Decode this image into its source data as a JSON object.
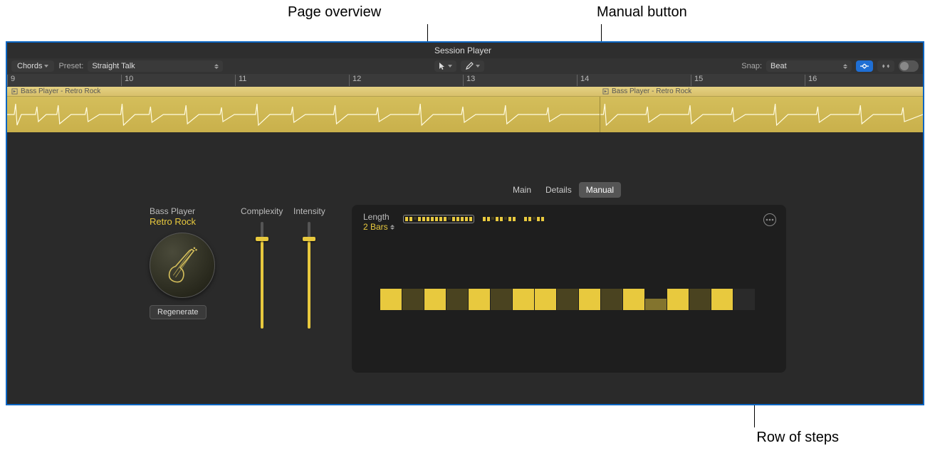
{
  "callouts": {
    "page_overview": "Page overview",
    "manual_button": "Manual button",
    "row_of_steps": "Row of steps"
  },
  "header": {
    "title": "Session Player"
  },
  "toolbar": {
    "chords_label": "Chords",
    "preset_label": "Preset:",
    "preset_value": "Straight Talk",
    "snap_label": "Snap:",
    "snap_value": "Beat"
  },
  "ruler": {
    "ticks": [
      "9",
      "10",
      "11",
      "12",
      "13",
      "14",
      "15",
      "16"
    ]
  },
  "region": {
    "name_a": "Bass Player - Retro Rock",
    "name_b": "Bass Player - Retro Rock",
    "color": "#d4be5b"
  },
  "tabs": {
    "main": "Main",
    "details": "Details",
    "manual": "Manual"
  },
  "player": {
    "type": "Bass Player",
    "style": "Retro Rock",
    "regenerate": "Regenerate",
    "complexity_label": "Complexity",
    "intensity_label": "Intensity",
    "complexity_value": 0.82,
    "intensity_value": 0.82
  },
  "manual": {
    "length_label": "Length",
    "length_value": "2 Bars",
    "page_overview_groups": [
      [
        1,
        1,
        0,
        1,
        1,
        1,
        1,
        1,
        1,
        1,
        0,
        1,
        1,
        1,
        1,
        1
      ],
      [
        1,
        1,
        0,
        1,
        1,
        0,
        1,
        1
      ],
      [
        1,
        1,
        0,
        1,
        1
      ]
    ],
    "steps": [
      "on",
      "dim",
      "on",
      "dim",
      "on",
      "dim",
      "on",
      "on",
      "dim",
      "on",
      "dim",
      "on",
      "half",
      "on",
      "dim",
      "on",
      "off"
    ]
  },
  "colors": {
    "accent": "#e8c93e",
    "panel": "#1e1e1e",
    "bg": "#2a2a2a",
    "select_blue": "#1f6fd4"
  }
}
